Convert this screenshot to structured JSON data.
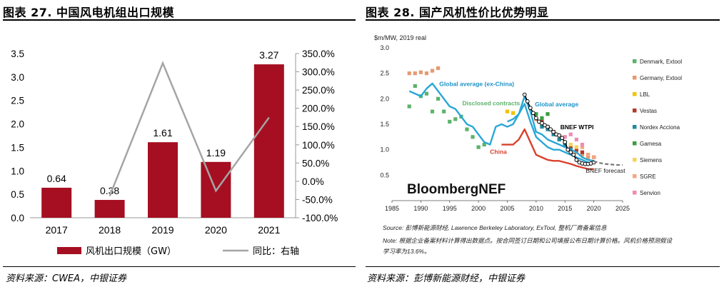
{
  "left_panel": {
    "title": "图表 27. 中国风电机组出口规模",
    "source": "资料来源：CWEA，中银证券"
  },
  "right_panel": {
    "title": "图表 28. 国产风机性价比优势明显",
    "source": "资料来源：彭博新能源财经，中银证券"
  },
  "chart_data": [
    {
      "type": "bar",
      "categories": [
        "2017",
        "2018",
        "2019",
        "2020",
        "2021"
      ],
      "series": [
        {
          "name": "风机出口规模（GW）",
          "values": [
            0.64,
            0.38,
            1.61,
            1.19,
            3.27
          ],
          "color": "#A50F21",
          "axis": "left"
        },
        {
          "name": "同比：右轴",
          "type": "line",
          "values": [
            null,
            -40.6,
            323.7,
            -26.1,
            174.8
          ],
          "color": "#A5A5A5",
          "axis": "right"
        }
      ],
      "data_labels": [
        "0.64",
        "0.38",
        "1.61",
        "1.19",
        "3.27"
      ],
      "y_left_ticks": [
        "0.0",
        "0.5",
        "1.0",
        "1.5",
        "2.0",
        "2.5",
        "3.0",
        "3.5"
      ],
      "y_right_ticks": [
        "-100.0%",
        "-50.0%",
        "0.0%",
        "50.0%",
        "100.0%",
        "150.0%",
        "200.0%",
        "250.0%",
        "300.0%",
        "350.0%"
      ],
      "ylim_left": [
        0,
        3.5
      ],
      "ylim_right": [
        -100,
        350
      ],
      "legend": [
        "风机出口规模（GW）",
        "同比：右轴"
      ],
      "legend_position": "bottom"
    },
    {
      "type": "line",
      "ylabel": "$m/MW, 2019 real",
      "xlim": [
        1985,
        2025
      ],
      "ylim": [
        0,
        3
      ],
      "x_ticks": [
        "1985",
        "1990",
        "1995",
        "2000",
        "2005",
        "2010",
        "2015",
        "2020",
        "2025"
      ],
      "y_ticks": [
        "0.5",
        "1.0",
        "1.5",
        "2.0",
        "2.5",
        "3.0"
      ],
      "watermark": "BloombergNEF",
      "annotations": {
        "global_ex_china": "Global average (ex-China)",
        "disclosed": "Disclosed contracts",
        "global_avg": "Global average",
        "china": "China",
        "bnef_wtpi": "BNEF WTPI",
        "bnef_forecast": "BNEF forecast"
      },
      "series": [
        {
          "name": "Global average (ex-China)",
          "color": "#2AA7D6",
          "x": [
            1988,
            1990,
            1991,
            1992,
            1993,
            1995,
            1996,
            1997,
            1998,
            1999,
            2000,
            2001,
            2002,
            2003,
            2004,
            2005,
            2006,
            2007,
            2008,
            2009,
            2010,
            2011,
            2012,
            2013,
            2014,
            2015,
            2016,
            2017,
            2018,
            2019,
            2020
          ],
          "y": [
            2.15,
            2.05,
            2.2,
            2.3,
            2.15,
            1.85,
            1.8,
            1.65,
            1.5,
            1.45,
            1.3,
            1.15,
            1.1,
            1.45,
            1.5,
            1.45,
            1.5,
            1.7,
            1.9,
            1.55,
            1.25,
            1.15,
            1.05,
            1.0,
            1.0,
            0.95,
            0.9,
            0.85,
            0.8,
            0.75,
            0.73
          ]
        },
        {
          "name": "Global average",
          "color": "#2AA7D6",
          "x": [
            2005,
            2006,
            2007,
            2008,
            2009,
            2010,
            2011,
            2012,
            2013,
            2014,
            2015,
            2016,
            2017,
            2018,
            2019,
            2020
          ],
          "y": [
            1.55,
            1.6,
            1.7,
            2.05,
            1.75,
            1.35,
            1.3,
            1.2,
            1.15,
            1.1,
            1.05,
            1.0,
            0.95,
            0.85,
            0.8,
            0.78
          ]
        },
        {
          "name": "China",
          "color": "#D9402B",
          "x": [
            2004,
            2005,
            2006,
            2007,
            2008,
            2009,
            2010,
            2011,
            2012,
            2013,
            2014,
            2015,
            2016,
            2017,
            2018,
            2019,
            2020
          ],
          "y": [
            1.1,
            1.1,
            1.1,
            1.2,
            1.4,
            1.15,
            0.9,
            0.85,
            0.8,
            0.78,
            0.78,
            0.75,
            0.72,
            0.68,
            0.65,
            0.62,
            0.62
          ]
        },
        {
          "name": "BNEF WTPI",
          "color": "#000000",
          "x": [
            2008,
            2008.5,
            2009,
            2009.5,
            2010,
            2010.5,
            2011,
            2011.5,
            2012,
            2012.5,
            2013,
            2013.5,
            2014,
            2014.5,
            2015,
            2015.5,
            2016,
            2016.5,
            2017,
            2017.5,
            2018,
            2018.5,
            2019,
            2019.5,
            2020
          ],
          "y": [
            2.08,
            1.95,
            1.82,
            1.72,
            1.62,
            1.55,
            1.52,
            1.48,
            1.45,
            1.4,
            1.35,
            1.3,
            1.28,
            1.23,
            1.15,
            1.0,
            0.95,
            0.9,
            0.8,
            0.75,
            0.73,
            0.72,
            0.72,
            0.73,
            0.75
          ]
        },
        {
          "name": "BNEF forecast",
          "color": "#777777",
          "x": [
            2020,
            2021,
            2022,
            2023,
            2024,
            2025
          ],
          "y": [
            0.77,
            0.74,
            0.72,
            0.71,
            0.7,
            0.7
          ]
        }
      ],
      "scatter_series": [
        {
          "name": "Denmark, Extool",
          "color": "#5BB36A",
          "points": [
            [
              1988,
              1.85
            ],
            [
              1989,
              2.25
            ],
            [
              1990,
              2.05
            ],
            [
              1991,
              2.1
            ],
            [
              1992,
              1.75
            ],
            [
              1993,
              2.0
            ],
            [
              1994,
              1.75
            ],
            [
              1995,
              1.55
            ],
            [
              1996,
              1.6
            ],
            [
              1997,
              1.65
            ],
            [
              1998,
              1.4
            ],
            [
              1999,
              1.25
            ],
            [
              2000,
              1.05
            ],
            [
              2001,
              1.1
            ]
          ]
        },
        {
          "name": "Germany, Extool",
          "color": "#E69A73",
          "points": [
            [
              1988,
              2.5
            ],
            [
              1989,
              2.5
            ],
            [
              1990,
              2.52
            ],
            [
              1991,
              2.5
            ],
            [
              1992,
              2.55
            ],
            [
              1993,
              2.6
            ],
            [
              2010,
              1.6
            ],
            [
              2011,
              1.5
            ],
            [
              2012,
              1.45
            ],
            [
              2013,
              1.35
            ],
            [
              2014,
              1.2
            ],
            [
              2015,
              1.1
            ],
            [
              2016,
              1.05
            ],
            [
              2017,
              0.95
            ],
            [
              2018,
              0.9
            ],
            [
              2019,
              0.85
            ],
            [
              2020,
              0.85
            ]
          ]
        },
        {
          "name": "LBL",
          "color": "#F2C200",
          "points": [
            [
              2005,
              1.75
            ],
            [
              2006,
              1.72
            ]
          ]
        },
        {
          "name": "Vestas",
          "color": "#B23A2A",
          "points": [
            [
              2011,
              1.55
            ],
            [
              2012,
              1.45
            ],
            [
              2013,
              1.35
            ],
            [
              2014,
              1.2
            ],
            [
              2015,
              1.1
            ],
            [
              2016,
              1.05
            ],
            [
              2017,
              1.0
            ],
            [
              2018,
              0.95
            ],
            [
              2019,
              0.9
            ],
            [
              2020,
              0.85
            ]
          ]
        },
        {
          "name": "Nordex Acciona",
          "color": "#1F8AA0",
          "points": [
            [
              2011,
              1.45
            ],
            [
              2012,
              1.4
            ],
            [
              2013,
              1.3
            ],
            [
              2014,
              1.2
            ],
            [
              2015,
              1.1
            ],
            [
              2016,
              1.0
            ]
          ]
        },
        {
          "name": "Gamesa",
          "color": "#3A9E3F",
          "points": [
            [
              2010,
              1.7
            ],
            [
              2011,
              1.62
            ],
            [
              2012,
              1.7
            ]
          ]
        },
        {
          "name": "Siemens",
          "color": "#F6D35A",
          "points": [
            [
              2015,
              1.25
            ],
            [
              2016,
              1.1
            ],
            [
              2017,
              1.05
            ]
          ]
        },
        {
          "name": "SGRE",
          "color": "#F4A582",
          "points": [
            [
              2018,
              1.05
            ],
            [
              2019,
              0.9
            ],
            [
              2020,
              0.85
            ]
          ]
        },
        {
          "name": "Senvion",
          "color": "#F08CB4",
          "points": [
            [
              2015,
              1.25
            ],
            [
              2016,
              1.3
            ],
            [
              2017,
              1.2
            ],
            [
              2018,
              1.1
            ]
          ]
        }
      ],
      "legend": [
        "Denmark, Extool",
        "Germany, Extool",
        "LBL",
        "Vestas",
        "Nordex Acciona",
        "Gamesa",
        "Siemens",
        "SGRE",
        "Senvion"
      ],
      "legend_position": "right",
      "footnote_source": "Source: 彭博新能源财经, Lawrence Berkeley Laboratory, ExTool, 整机厂商备案信息",
      "footnote_note": "Note: 根据企业备案材料计算得出数据点。按合同签订日期和公司填报公布日期计算价格。风机价格预测假设",
      "footnote_note2": "学习率为13.6%。"
    }
  ]
}
